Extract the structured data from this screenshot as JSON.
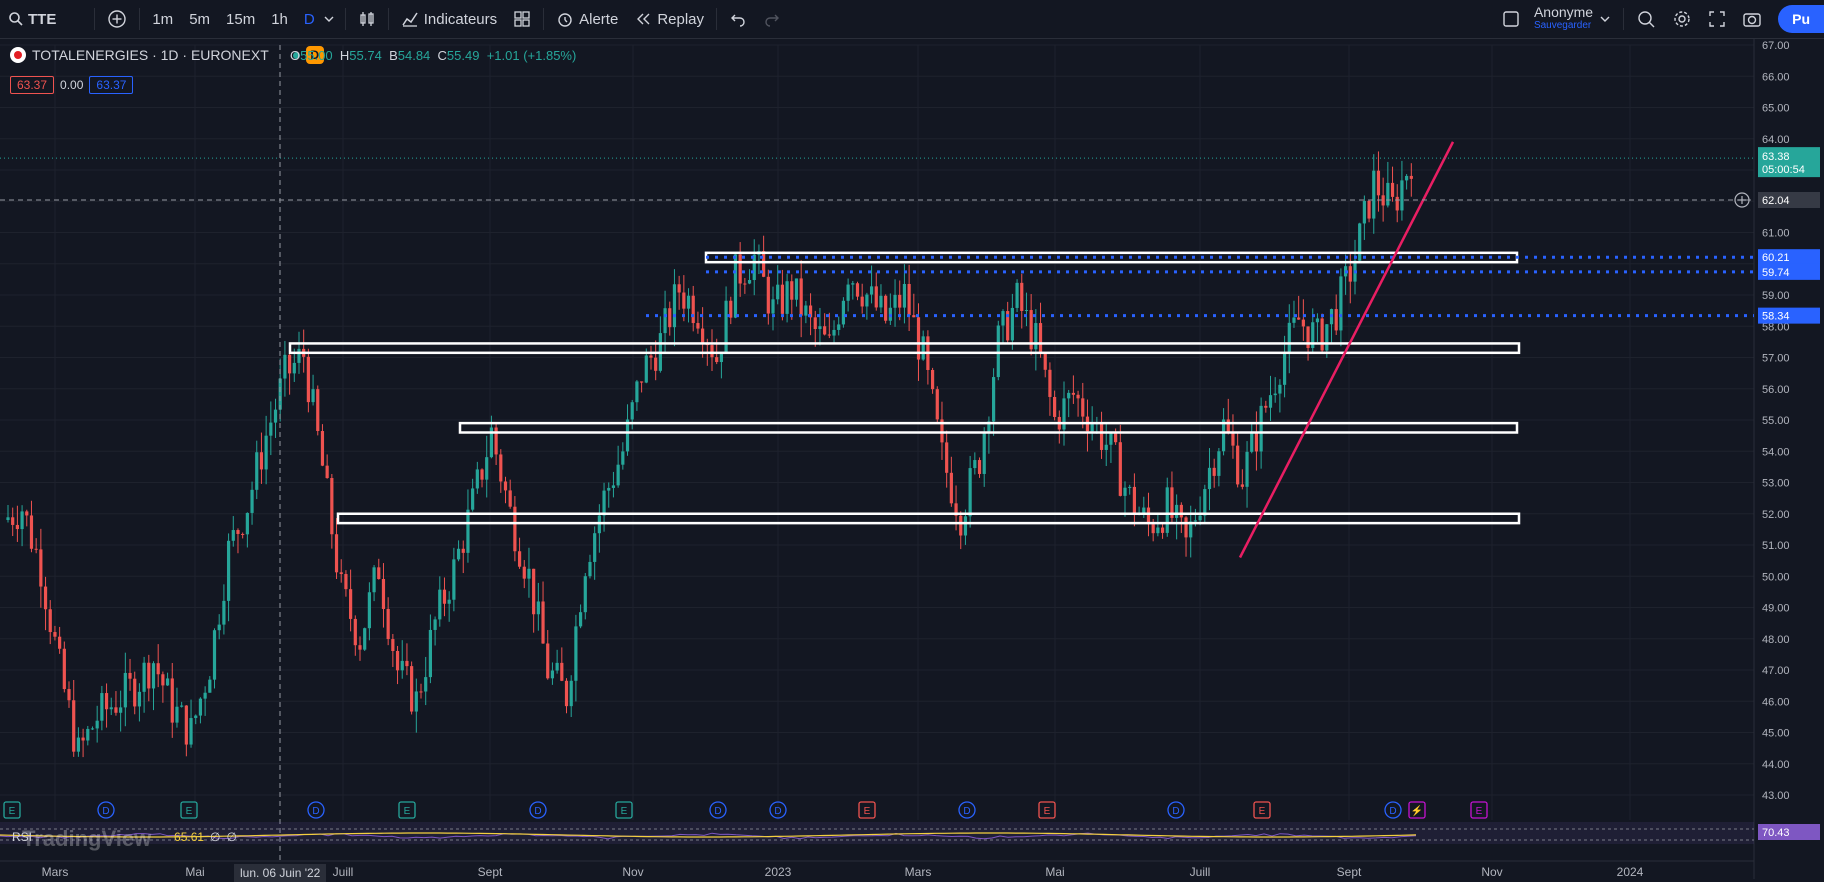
{
  "topbar": {
    "symbol": "TTE",
    "intervals": [
      "1m",
      "5m",
      "15m",
      "1h",
      "D"
    ],
    "active_interval": "D",
    "indicators_label": "Indicateurs",
    "alert_label": "Alerte",
    "replay_label": "Replay",
    "user_name": "Anonyme",
    "user_sub": "Sauvegarder",
    "publish_label": "Pu"
  },
  "legend": {
    "title": "TOTALENERGIES · 1D · EURONEXT",
    "badge": "D",
    "o_label": "O",
    "o": "55.00",
    "h_label": "H",
    "h": "55.74",
    "b_label": "B",
    "b": "54.84",
    "c_label": "C",
    "c": "55.49",
    "change": "+1.01 (+1.85%)",
    "bid": "63.37",
    "spread": "0.00",
    "ask": "63.37"
  },
  "price_axis": {
    "ticks": [
      "67.00",
      "66.00",
      "65.00",
      "64.00",
      "63.00",
      "62.00",
      "61.00",
      "60.00",
      "59.00",
      "58.00",
      "57.00",
      "56.00",
      "55.00",
      "54.00",
      "53.00",
      "52.00",
      "51.00",
      "50.00",
      "49.00",
      "48.00",
      "47.00",
      "46.00",
      "45.00",
      "44.00",
      "43.00"
    ],
    "last_price": "63.38",
    "countdown": "05:00:54",
    "crosshair_price": "62.04",
    "level_labels": [
      "60.21",
      "59.74",
      "58.34"
    ],
    "rsi_value": "70.43"
  },
  "time_axis": {
    "labels": [
      "Mars",
      "Mai",
      "Juill",
      "Sept",
      "Nov",
      "2023",
      "Mars",
      "Mai",
      "Juill",
      "Sept",
      "Nov",
      "2024"
    ],
    "crosshair_date": "lun. 06 Juin '22"
  },
  "events": [
    "E",
    "D",
    "E",
    "D",
    "E",
    "D",
    "E",
    "D",
    "D",
    "E",
    "D",
    "E",
    "D",
    "E",
    "D",
    "⚡",
    "E"
  ],
  "rsi": {
    "label": "RSI",
    "value": "65.61",
    "extra1": "∅",
    "extra2": "∅"
  },
  "watermark": "TradingView",
  "colors": {
    "bg": "#131722",
    "up": "#26a69a",
    "down": "#ef5350",
    "level": "#2962ff",
    "trend": "#e91e63",
    "rsi": "#7e57c2",
    "rsi_ma": "#f4d03f"
  },
  "chart_data": {
    "type": "candlestick",
    "price_range": [
      43,
      67
    ],
    "series_close": [
      51.8,
      52.2,
      50.3,
      47.0,
      44.3,
      45.5,
      46.0,
      46.5,
      47.3,
      45.8,
      45.0,
      47.2,
      50.8,
      52.3,
      54.5,
      56.4,
      57.1,
      53.5,
      49.5,
      48.0,
      50.3,
      47.0,
      46.0,
      48.5,
      50.2,
      52.3,
      54.6,
      52.0,
      50.0,
      47.0,
      46.2,
      50.5,
      52.5,
      54.0,
      56.5,
      57.5,
      59.2,
      58.5,
      57.0,
      59.6,
      60.2,
      58.5,
      59.2,
      58.0,
      57.3,
      59.8,
      59.0,
      58.2,
      59.0,
      57.0,
      53.8,
      52.0,
      53.8,
      57.5,
      58.8,
      57.5,
      55.0,
      55.8,
      55.0,
      54.0,
      52.5,
      51.6,
      52.2,
      51.0,
      53.0,
      54.8,
      53.2,
      55.0,
      56.8,
      58.2,
      57.6,
      58.5,
      60.2,
      62.6,
      61.8,
      63.4
    ]
  }
}
